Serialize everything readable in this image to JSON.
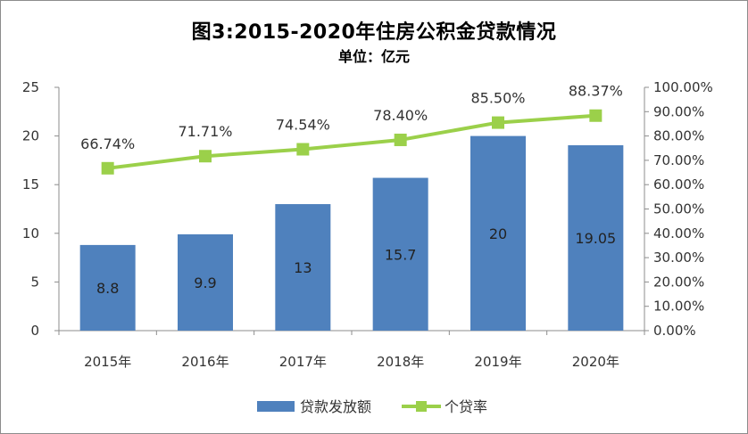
{
  "title": "图3:2015-2020年住房公积金贷款情况",
  "subtitle": "单位：亿元",
  "chart_data": {
    "type": "bar+line",
    "categories": [
      "2015年",
      "2016年",
      "2017年",
      "2018年",
      "2019年",
      "2020年"
    ],
    "series": [
      {
        "name": "贷款发放额",
        "type": "bar",
        "axis": "left",
        "values": [
          8.8,
          9.9,
          13,
          15.7,
          20,
          19.05
        ],
        "labels": [
          "8.8",
          "9.9",
          "13",
          "15.7",
          "20",
          "19.05"
        ],
        "color": "#4F81BD"
      },
      {
        "name": "个贷率",
        "type": "line",
        "axis": "right",
        "values": [
          66.74,
          71.71,
          74.54,
          78.4,
          85.5,
          88.37
        ],
        "labels": [
          "66.74%",
          "71.71%",
          "74.54%",
          "78.40%",
          "85.50%",
          "88.37%"
        ],
        "color": "#9BD04A"
      }
    ],
    "y_left": {
      "min": 0,
      "max": 25,
      "ticks": [
        "0",
        "5",
        "10",
        "15",
        "20",
        "25"
      ]
    },
    "y_right": {
      "min": 0,
      "max": 100,
      "ticks": [
        "0.00%",
        "10.00%",
        "20.00%",
        "30.00%",
        "40.00%",
        "50.00%",
        "60.00%",
        "70.00%",
        "80.00%",
        "90.00%",
        "100.00%"
      ]
    },
    "grid": false,
    "legend_position": "bottom"
  }
}
